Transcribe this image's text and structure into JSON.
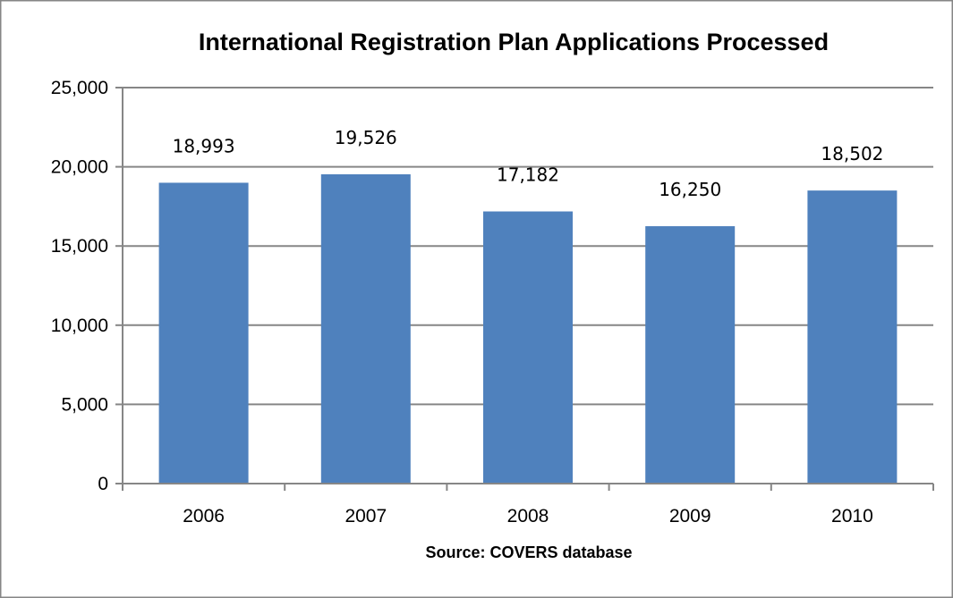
{
  "chart_data": {
    "type": "bar",
    "title": "International Registration Plan Applications Processed",
    "xlabel": "Source: COVERS database",
    "ylabel": "",
    "categories": [
      "2006",
      "2007",
      "2008",
      "2009",
      "2010"
    ],
    "values": [
      18993,
      19526,
      17182,
      16250,
      18502
    ],
    "value_labels": [
      "18,993",
      "19,526",
      "17,182",
      "16,250",
      "18,502"
    ],
    "ylim": [
      0,
      25000
    ],
    "yticks": [
      0,
      5000,
      10000,
      15000,
      20000,
      25000
    ],
    "ytick_labels": [
      "0",
      "5,000",
      "10,000",
      "15,000",
      "20,000",
      "25,000"
    ],
    "grid": true,
    "legend": "none",
    "colors": {
      "bar": "#4f81bd",
      "grid": "#868686",
      "axis": "#868686",
      "frame": "#868686"
    }
  }
}
